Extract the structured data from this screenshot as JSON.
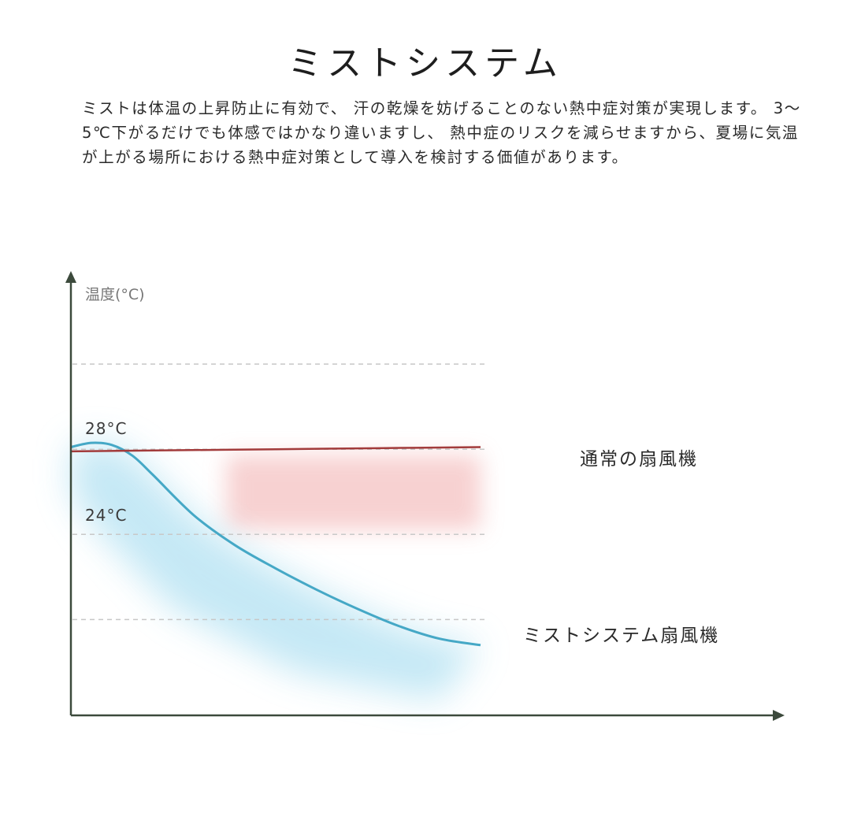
{
  "title": "ミストシステム",
  "description": "ミストは体温の上昇防止に有効で、 汗の乾燥を妨げることのない熱中症対策が実現します。 3～5℃下がるだけでも体感ではかなり違いますし、 熱中症のリスクを減らせますから、夏場に気温が上がる場所における熱中症対策として導入を検討する価値があります。",
  "chart_data": {
    "type": "line",
    "ylabel": "温度(°C)",
    "xlabel": "",
    "y_tick_labels": [
      {
        "label": "28°C",
        "value": 28
      },
      {
        "label": "24°C",
        "value": 24
      }
    ],
    "gridlines": [
      32,
      28,
      24,
      20
    ],
    "ylim": [
      15.5,
      36
    ],
    "xlim": [
      0,
      1
    ],
    "series": [
      {
        "name": "通常の扇風機",
        "color": "#a23b3b",
        "points": [
          [
            0,
            27.9
          ],
          [
            0.25,
            27.95
          ],
          [
            0.5,
            28.0
          ],
          [
            0.75,
            28.05
          ],
          [
            1,
            28.1
          ]
        ]
      },
      {
        "name": "ミストシステム扇風機",
        "color": "#45a8c6",
        "points": [
          [
            0,
            28.1
          ],
          [
            0.05,
            28.3
          ],
          [
            0.1,
            28.2
          ],
          [
            0.15,
            27.7
          ],
          [
            0.2,
            26.8
          ],
          [
            0.3,
            24.9
          ],
          [
            0.4,
            23.5
          ],
          [
            0.5,
            22.4
          ],
          [
            0.6,
            21.4
          ],
          [
            0.7,
            20.5
          ],
          [
            0.8,
            19.7
          ],
          [
            0.9,
            19.1
          ],
          [
            1.0,
            18.8
          ]
        ]
      }
    ],
    "colors": {
      "axis": "#3c4a3c",
      "grid": "#c8c8c8",
      "warm_band": "#f6c9c9",
      "cool_glow": "#bfe6f4"
    }
  }
}
